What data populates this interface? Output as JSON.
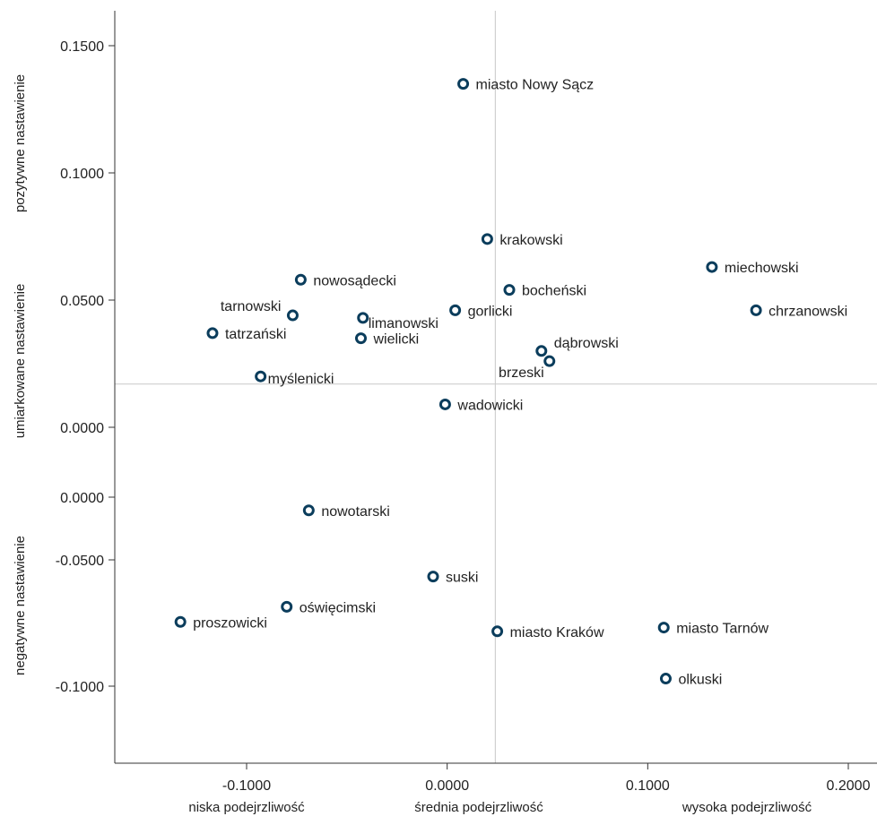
{
  "chart_data": {
    "type": "scatter",
    "title": "",
    "xlabel": "",
    "ylabel": "",
    "x_ticks": [
      {
        "value": -0.1,
        "label": "-0.1000"
      },
      {
        "value": 0.0,
        "label": "0.0000"
      },
      {
        "value": 0.1,
        "label": "0.1000"
      },
      {
        "value": 0.2,
        "label": "0.2000"
      }
    ],
    "y_ticks_upper": [
      "0.1500",
      "0.1000",
      "0.0500",
      "0.0000"
    ],
    "y_ticks_lower": [
      "0.0000",
      "-0.0500",
      "-0.1000"
    ],
    "x_band_labels": [
      "niska podejrzliwość",
      "średnia podejrzliwość",
      "wysoka podejrzliwość"
    ],
    "y_band_labels": [
      "pozytywne nastawienie",
      "umiarkowane nastawienie",
      "negatywne nastawienie"
    ],
    "reference_lines": {
      "x": 0.024,
      "y": 0.017
    },
    "grid": false,
    "marker_color": "#0b3d5c",
    "reference_line_color": "#c8c8c8",
    "points": [
      {
        "label": "miasto Nowy Sącz",
        "x": 0.008,
        "y": 0.135
      },
      {
        "label": "krakowski",
        "x": 0.02,
        "y": 0.074
      },
      {
        "label": "miechowski",
        "x": 0.132,
        "y": 0.063
      },
      {
        "label": "nowosądecki",
        "x": -0.073,
        "y": 0.058
      },
      {
        "label": "bocheński",
        "x": 0.031,
        "y": 0.054
      },
      {
        "label": "chrzanowski",
        "x": 0.154,
        "y": 0.046
      },
      {
        "label": "tarnowski",
        "x": -0.077,
        "y": 0.044
      },
      {
        "label": "limanowski",
        "x": -0.042,
        "y": 0.043
      },
      {
        "label": "gorlicki",
        "x": 0.004,
        "y": 0.046
      },
      {
        "label": "tatrzański",
        "x": -0.117,
        "y": 0.037
      },
      {
        "label": "wielicki",
        "x": -0.043,
        "y": 0.035
      },
      {
        "label": "dąbrowski",
        "x": 0.047,
        "y": 0.03
      },
      {
        "label": "brzeski",
        "x": 0.051,
        "y": 0.026
      },
      {
        "label": "myślenicki",
        "x": -0.093,
        "y": 0.02
      },
      {
        "label": "wadowicki",
        "x": -0.001,
        "y": 0.009
      },
      {
        "label": "nowotarski",
        "x": -0.069,
        "y": -0.007
      },
      {
        "label": "suski",
        "x": -0.007,
        "y": -0.042
      },
      {
        "label": "oświęcimski",
        "x": -0.08,
        "y": -0.058
      },
      {
        "label": "proszowicki",
        "x": -0.133,
        "y": -0.066
      },
      {
        "label": "miasto Kraków",
        "x": 0.025,
        "y": -0.071
      },
      {
        "label": "miasto Tarnów",
        "x": 0.108,
        "y": -0.069
      },
      {
        "label": "olkuski",
        "x": 0.109,
        "y": -0.096
      }
    ]
  }
}
